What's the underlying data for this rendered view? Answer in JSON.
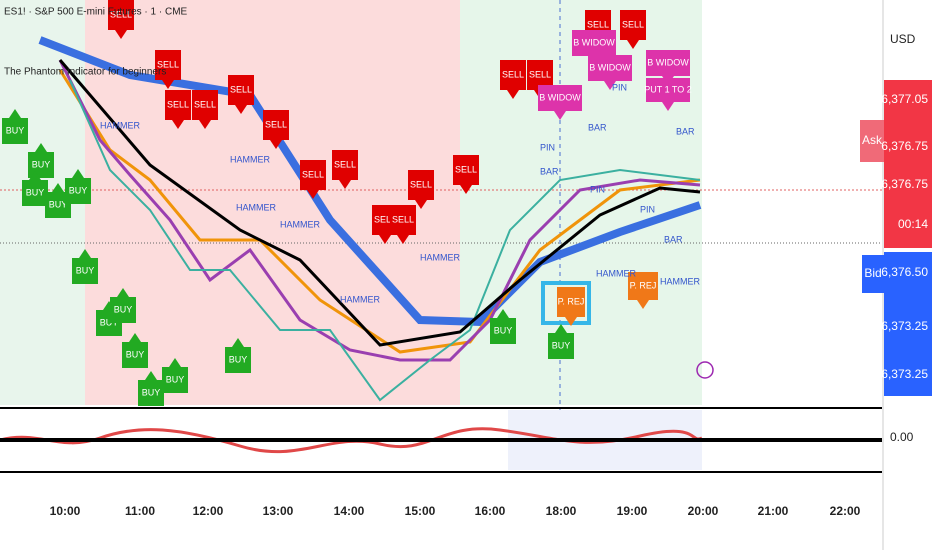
{
  "header": {
    "symbol": "ES1! · S&P 500 E-mini Futures · 1 · CME",
    "indicator": "The Phantom Indicator for beginners"
  },
  "price_axis": {
    "currency": "USD",
    "ask": "Ask",
    "bid": "Bid",
    "labels": [
      "6,377.05",
      "6,376.75",
      "6,376.75",
      "00:14",
      "6,376.50",
      "6,373.25",
      "6,373.25"
    ],
    "oscillator": "0.00"
  },
  "time_axis": [
    "10:00",
    "11:00",
    "12:00",
    "13:00",
    "14:00",
    "15:00",
    "16:00",
    "18:00",
    "19:00",
    "20:00",
    "21:00",
    "22:00"
  ],
  "signals": {
    "sell": "SELL",
    "buy": "BUY",
    "widow": "B WIDOW",
    "rej": "P. REJ",
    "hammer": "HAMMER",
    "pin": "PIN",
    "bar": "BAR",
    "put": "PUT 1 TO 2"
  }
}
